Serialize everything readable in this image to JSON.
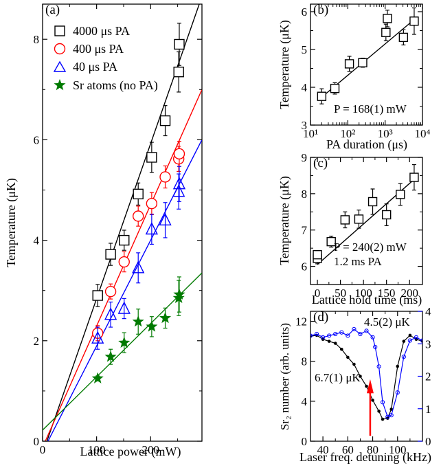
{
  "chart_data": [
    {
      "panel": "(a)",
      "type": "scatter",
      "xlabel": "Lattice power (mW)",
      "ylabel": "Temperature (μK)",
      "xlim": [
        0,
        295
      ],
      "ylim": [
        0,
        8.7
      ],
      "xticks": [
        0,
        100,
        200
      ],
      "yticks": [
        0,
        2,
        4,
        6,
        8
      ],
      "legend_position": "top-left",
      "series": [
        {
          "name": "4000 μs PA",
          "marker": "square",
          "color": "#000000",
          "x": [
            102,
            126,
            151,
            177,
            202,
            227,
            252,
            253
          ],
          "y": [
            2.9,
            3.72,
            4.0,
            4.92,
            5.65,
            6.38,
            7.35,
            7.9
          ],
          "err": [
            0.22,
            0.22,
            0.2,
            0.22,
            0.3,
            0.3,
            0.4,
            0.42
          ],
          "fit": [
            [
              8,
              0
            ],
            [
              290,
              8.7
            ]
          ]
        },
        {
          "name": "400 μs PA",
          "marker": "circle",
          "color": "#ff0000",
          "x": [
            102,
            126,
            151,
            177,
            202,
            227,
            252,
            253
          ],
          "y": [
            2.15,
            2.98,
            3.57,
            4.48,
            4.73,
            5.26,
            5.62,
            5.72
          ],
          "err": [
            0.15,
            0.15,
            0.2,
            0.2,
            0.22,
            0.22,
            0.25,
            0.25
          ],
          "fit": [
            [
              5,
              0
            ],
            [
              295,
              7.0
            ]
          ]
        },
        {
          "name": "40 μs PA",
          "marker": "triangle",
          "color": "#0000ff",
          "x": [
            102,
            126,
            151,
            177,
            202,
            227,
            252,
            253
          ],
          "y": [
            2.05,
            2.52,
            2.64,
            3.45,
            4.22,
            4.4,
            4.97,
            5.12
          ],
          "err": [
            0.22,
            0.25,
            0.2,
            0.3,
            0.3,
            0.35,
            0.35,
            0.35
          ],
          "fit": [
            [
              10,
              0
            ],
            [
              295,
              6.0
            ]
          ]
        },
        {
          "name": "Sr atoms (no PA)",
          "marker": "star",
          "color": "#007a00",
          "x": [
            102,
            126,
            151,
            177,
            202,
            227,
            252,
            253
          ],
          "y": [
            1.25,
            1.68,
            1.96,
            2.38,
            2.28,
            2.45,
            2.85,
            2.92
          ],
          "err": [
            0.05,
            0.15,
            0.2,
            0.25,
            0.2,
            0.2,
            0.35,
            0.35
          ],
          "fit": [
            [
              0,
              0.22
            ],
            [
              295,
              3.35
            ]
          ]
        }
      ]
    },
    {
      "panel": "(b)",
      "type": "scatter",
      "xlabel": "PA duration (μs)",
      "ylabel": "Temperature (μK)",
      "xscale": "log",
      "xlim": [
        10,
        10000
      ],
      "ylim": [
        3,
        6.2
      ],
      "xticks": [
        10,
        100,
        1000,
        10000
      ],
      "xtick_labels": [
        "10¹",
        "10²",
        "10³",
        "10⁴"
      ],
      "yticks": [
        3,
        4,
        5,
        6
      ],
      "annotation": "P = 168(1) mW",
      "series": [
        {
          "marker": "square",
          "color": "#000000",
          "x": [
            20,
            45,
            110,
            250,
            1050,
            1150,
            3100,
            6000
          ],
          "y": [
            3.76,
            3.97,
            4.62,
            4.65,
            5.45,
            5.82,
            5.32,
            5.75
          ],
          "err": [
            0.2,
            0.15,
            0.2,
            0.12,
            0.22,
            0.22,
            0.2,
            0.35
          ],
          "fit": [
            [
              17,
              3.68
            ],
            [
              6500,
              5.82
            ]
          ]
        }
      ]
    },
    {
      "panel": "(c)",
      "type": "scatter",
      "xlabel": "Lattice hold time (ms)",
      "ylabel": "Temperature (μK)",
      "xlim": [
        -15,
        228
      ],
      "ylim": [
        5.5,
        9
      ],
      "xticks": [
        0,
        50,
        100,
        150,
        200
      ],
      "yticks": [
        6,
        7,
        8,
        9
      ],
      "annotation": [
        "P = 240(2) mW",
        "1.2 ms PA"
      ],
      "series": [
        {
          "marker": "square",
          "color": "#000000",
          "x": [
            0,
            0,
            30,
            60,
            90,
            120,
            150,
            180,
            210
          ],
          "y": [
            6.22,
            6.32,
            6.68,
            7.28,
            7.3,
            7.78,
            7.42,
            7.98,
            8.45
          ],
          "err": [
            0.15,
            0.1,
            0.15,
            0.22,
            0.25,
            0.35,
            0.3,
            0.3,
            0.35
          ],
          "fit": [
            [
              0,
              6.05
            ],
            [
              215,
              8.45
            ]
          ]
        }
      ]
    },
    {
      "panel": "(d)",
      "type": "line",
      "xlabel": "Laser freq. detuning (kHz)",
      "ylabel": "Sr₂ number (arb. units)",
      "xlim": [
        30,
        120
      ],
      "ylim_left": [
        0,
        13
      ],
      "ylim_right": [
        0,
        4
      ],
      "xticks": [
        40,
        60,
        80,
        100
      ],
      "yticks_left": [
        0,
        4,
        8,
        12
      ],
      "yticks_right": [
        0,
        1,
        2,
        3,
        4
      ],
      "arrow_x": 78,
      "series": [
        {
          "name": "6.7(1) μK",
          "axis": "left",
          "color": "#000000",
          "marker": "filled-dot",
          "x": [
            30,
            35,
            40,
            45,
            50,
            55,
            60,
            65,
            70,
            75,
            80,
            85,
            88,
            92,
            95,
            100,
            105,
            110,
            115,
            120
          ],
          "y": [
            10.5,
            10.6,
            10.2,
            10.0,
            9.8,
            9.2,
            8.4,
            7.7,
            6.5,
            5.5,
            4.1,
            3.0,
            2.2,
            2.3,
            3.2,
            7.5,
            10.0,
            10.6,
            10.2,
            10.0
          ]
        },
        {
          "name": "4.5(2) μK",
          "axis": "right",
          "color": "#0000ff",
          "marker": "open-circle",
          "x": [
            30,
            35,
            40,
            45,
            50,
            55,
            60,
            65,
            70,
            75,
            80,
            82,
            85,
            88,
            92,
            95,
            100,
            105,
            110,
            115,
            120
          ],
          "y": [
            3.25,
            3.3,
            3.2,
            3.25,
            3.3,
            3.35,
            3.25,
            3.45,
            3.3,
            3.4,
            3.2,
            2.9,
            2.3,
            1.2,
            0.75,
            0.8,
            1.5,
            2.6,
            3.1,
            3.2,
            3.1
          ]
        }
      ]
    }
  ],
  "labels": {
    "a": {
      "panel": "(a)",
      "xlabel": "Lattice power (mW)",
      "ylabel": "Temperature (μK)",
      "legend": [
        "4000 μs PA",
        "400 μs PA",
        "40 μs PA",
        "Sr atoms (no PA)"
      ]
    },
    "b": {
      "panel": "(b)",
      "xlabel": "PA duration (μs)",
      "ylabel": "Temperature (μK)",
      "annotation": "P = 168(1) mW"
    },
    "c": {
      "panel": "(c)",
      "xlabel": "Lattice hold time (ms)",
      "ylabel": "Temperature (μK)",
      "annotation1": "P = 240(2) mW",
      "annotation2": "1.2 ms PA"
    },
    "d": {
      "panel": "(d)",
      "xlabel": "Laser freq. detuning (kHz)",
      "ylabel": "Sr₂ number (arb. units)",
      "black_label": "6.7(1) μK",
      "blue_label": "4.5(2) μK"
    }
  }
}
